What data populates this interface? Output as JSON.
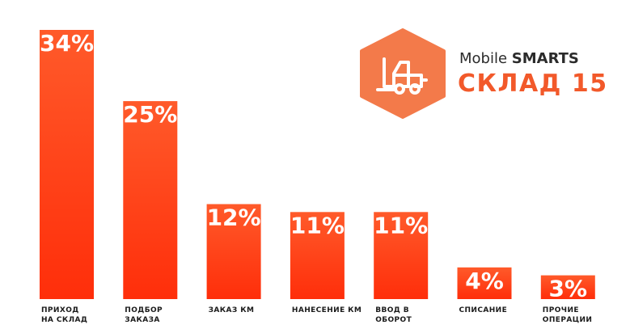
{
  "brand": {
    "name_regular": "Mobile ",
    "name_bold": "SMARTS",
    "product": "СКЛАД 15",
    "logo_icon": "forklift-icon"
  },
  "colors": {
    "bar_top": "#ff5a2a",
    "bar_bottom": "#ff2e0a",
    "logo_fill": "#f37a4a",
    "accent": "#f2592a"
  },
  "chart_data": {
    "type": "bar",
    "unit": "%",
    "categories": [
      [
        "ПРИХОД",
        "НА СКЛАД"
      ],
      [
        "ПОДБОР",
        "ЗАКАЗА"
      ],
      [
        "ЗАКАЗ КМ"
      ],
      [
        "НАНЕСЕНИЕ КМ"
      ],
      [
        "ВВОД В",
        "ОБОРОТ"
      ],
      [
        "СПИСАНИЕ"
      ],
      [
        "ПРОЧИЕ",
        "ОПЕРАЦИИ"
      ]
    ],
    "values": [
      34,
      25,
      12,
      11,
      11,
      4,
      3
    ],
    "value_labels": [
      "34%",
      "25%",
      "12%",
      "11%",
      "11%",
      "4%",
      "3%"
    ],
    "ylim": [
      0,
      34
    ],
    "grid": false,
    "legend": "none"
  }
}
